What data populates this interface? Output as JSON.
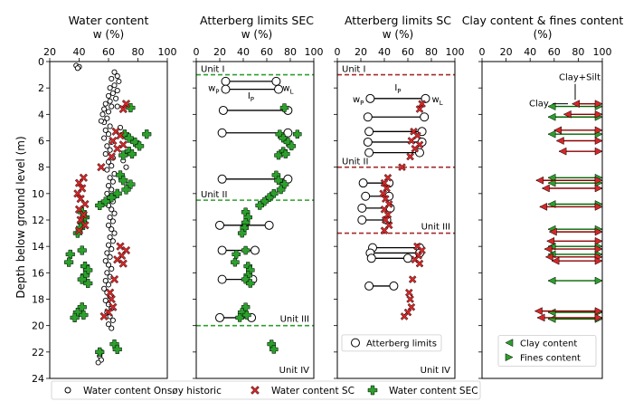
{
  "ylabel": "Depth below ground level (m)",
  "y_ticks": [
    0,
    2,
    4,
    6,
    8,
    10,
    12,
    14,
    16,
    18,
    20,
    22,
    24
  ],
  "ylim": [
    24,
    0
  ],
  "panels": [
    {
      "id": "water",
      "title": "Water content",
      "xlabel": "w (%)",
      "xlim": [
        20,
        100
      ],
      "x_ticks": [
        20,
        40,
        60,
        80,
        100
      ]
    },
    {
      "id": "sec",
      "title": "Atterberg limits SEC",
      "xlabel": "w (%)",
      "xlim": [
        0,
        100
      ],
      "x_ticks": [
        0,
        20,
        40,
        60,
        80,
        100
      ],
      "units": [
        {
          "label": "Unit I",
          "depth": 1.0
        },
        {
          "label": "Unit II",
          "depth": 10.5
        },
        {
          "label": "Unit III",
          "depth": 20.0
        }
      ],
      "bottom_label": "Unit IV",
      "legend_labels": {
        "wp": "w",
        "wp_sub": "P",
        "wl": "w",
        "wl_sub": "L",
        "ip": "I",
        "ip_sub": "P"
      }
    },
    {
      "id": "sc",
      "title": "Atterberg limits SC",
      "xlabel": "w (%)",
      "xlim": [
        0,
        100
      ],
      "x_ticks": [
        0,
        20,
        40,
        60,
        80,
        100
      ],
      "units": [
        {
          "label": "Unit I",
          "depth": 1.0
        },
        {
          "label": "Unit II",
          "depth": 8.0
        },
        {
          "label": "Unit III",
          "depth": 13.0
        }
      ],
      "bottom_label": "Unit IV",
      "legend_labels": {
        "wp": "w",
        "wp_sub": "P",
        "wl": "w",
        "wl_sub": "L",
        "ip": "I",
        "ip_sub": "P"
      },
      "legend": "Atterberg limits"
    },
    {
      "id": "clay",
      "title": "Clay content & fines content",
      "xlabel": "(%)",
      "xlim": [
        0,
        100
      ],
      "x_ticks": [
        0,
        20,
        40,
        60,
        80,
        100
      ],
      "annotations": [
        "Clay+Silt",
        "Clay"
      ],
      "legend": [
        "Clay content",
        "Fines content"
      ]
    }
  ],
  "bottom_legend": [
    "Water content Onsøy historic",
    "Water content SC",
    "Water content SEC"
  ],
  "colors": {
    "sc": "#d62728",
    "sec": "#2ca02c",
    "unit_sec": "#2ca02c",
    "unit_sc": "#a52a2a",
    "clay_arrow": "#8b0000",
    "fines_arrow": "#006400"
  },
  "chart_data": {
    "type": "scatter",
    "water_content": {
      "onsoy_historic": [
        [
          38,
          0.3
        ],
        [
          40,
          0.4
        ],
        [
          39,
          0.5
        ],
        [
          64,
          0.8
        ],
        [
          66,
          1.1
        ],
        [
          62,
          1.3
        ],
        [
          67,
          1.5
        ],
        [
          64,
          1.8
        ],
        [
          61,
          2.0
        ],
        [
          66,
          2.2
        ],
        [
          63,
          2.4
        ],
        [
          60,
          2.6
        ],
        [
          65,
          2.8
        ],
        [
          61,
          3.0
        ],
        [
          58,
          3.2
        ],
        [
          62,
          3.4
        ],
        [
          57,
          3.6
        ],
        [
          60,
          3.8
        ],
        [
          56,
          4.0
        ],
        [
          59,
          4.3
        ],
        [
          57,
          4.6
        ],
        [
          61,
          4.9
        ],
        [
          58,
          5.2
        ],
        [
          60,
          5.5
        ],
        [
          57,
          5.8
        ],
        [
          62,
          6.1
        ],
        [
          59,
          6.4
        ],
        [
          61,
          6.7
        ],
        [
          58,
          7.0
        ],
        [
          63,
          7.3
        ],
        [
          60,
          7.6
        ],
        [
          62,
          7.9
        ],
        [
          59,
          8.2
        ],
        [
          64,
          8.5
        ],
        [
          61,
          8.8
        ],
        [
          63,
          9.1
        ],
        [
          60,
          9.4
        ],
        [
          62,
          9.7
        ],
        [
          59,
          10.0
        ],
        [
          61,
          10.3
        ],
        [
          63,
          10.6
        ],
        [
          60,
          10.9
        ],
        [
          62,
          11.2
        ],
        [
          64,
          11.5
        ],
        [
          61,
          11.8
        ],
        [
          63,
          12.1
        ],
        [
          60,
          12.4
        ],
        [
          62,
          12.7
        ],
        [
          64,
          13.0
        ],
        [
          61,
          13.3
        ],
        [
          63,
          13.6
        ],
        [
          60,
          13.9
        ],
        [
          62,
          14.2
        ],
        [
          59,
          14.5
        ],
        [
          61,
          14.8
        ],
        [
          58,
          15.1
        ],
        [
          60,
          15.4
        ],
        [
          62,
          15.7
        ],
        [
          59,
          16.0
        ],
        [
          61,
          16.3
        ],
        [
          58,
          16.6
        ],
        [
          60,
          16.9
        ],
        [
          57,
          17.2
        ],
        [
          59,
          17.5
        ],
        [
          61,
          17.8
        ],
        [
          58,
          18.1
        ],
        [
          60,
          18.4
        ],
        [
          62,
          18.7
        ],
        [
          59,
          19.0
        ],
        [
          61,
          19.3
        ],
        [
          63,
          19.6
        ],
        [
          60,
          19.9
        ],
        [
          62,
          20.2
        ],
        [
          55,
          22.0
        ],
        [
          54,
          22.3
        ],
        [
          55,
          22.6
        ],
        [
          53,
          22.8
        ],
        [
          70,
          7.5
        ],
        [
          72,
          8.0
        ],
        [
          55,
          4.5
        ],
        [
          66,
          3.4
        ],
        [
          68,
          5.0
        ]
      ],
      "sc": [
        [
          72,
          3.2
        ],
        [
          70,
          3.6
        ],
        [
          65,
          5.3
        ],
        [
          68,
          5.6
        ],
        [
          63,
          6.0
        ],
        [
          70,
          6.3
        ],
        [
          66,
          6.6
        ],
        [
          62,
          7.2
        ],
        [
          55,
          8.0
        ],
        [
          43,
          8.8
        ],
        [
          40,
          9.2
        ],
        [
          42,
          9.6
        ],
        [
          39,
          10.0
        ],
        [
          41,
          10.4
        ],
        [
          44,
          10.8
        ],
        [
          40,
          11.2
        ],
        [
          43,
          11.6
        ],
        [
          41,
          12.0
        ],
        [
          44,
          12.4
        ],
        [
          40,
          12.8
        ],
        [
          68,
          14.0
        ],
        [
          72,
          14.3
        ],
        [
          69,
          14.7
        ],
        [
          66,
          15.0
        ],
        [
          70,
          15.3
        ],
        [
          64,
          16.5
        ],
        [
          61,
          17.5
        ],
        [
          62,
          18.0
        ],
        [
          63,
          18.6
        ],
        [
          60,
          19.0
        ],
        [
          57,
          19.3
        ]
      ],
      "sec": [
        [
          75,
          3.5
        ],
        [
          71,
          5.5
        ],
        [
          74,
          5.8
        ],
        [
          78,
          6.1
        ],
        [
          81,
          6.4
        ],
        [
          86,
          5.5
        ],
        [
          74,
          6.8
        ],
        [
          70,
          7.1
        ],
        [
          76,
          7.0
        ],
        [
          68,
          8.6
        ],
        [
          70,
          9.0
        ],
        [
          75,
          9.3
        ],
        [
          72,
          9.7
        ],
        [
          66,
          10.0
        ],
        [
          62,
          10.3
        ],
        [
          58,
          10.6
        ],
        [
          54,
          10.9
        ],
        [
          42,
          11.4
        ],
        [
          44,
          11.8
        ],
        [
          42,
          12.2
        ],
        [
          41,
          12.6
        ],
        [
          39,
          13.0
        ],
        [
          42,
          14.3
        ],
        [
          34,
          14.6
        ],
        [
          33,
          15.2
        ],
        [
          44,
          15.5
        ],
        [
          46,
          15.8
        ],
        [
          44,
          16.2
        ],
        [
          42,
          16.5
        ],
        [
          46,
          16.8
        ],
        [
          42,
          18.6
        ],
        [
          39,
          19.0
        ],
        [
          37,
          19.4
        ],
        [
          43,
          19.2
        ],
        [
          64,
          21.4
        ],
        [
          66,
          21.8
        ],
        [
          54,
          22.0
        ]
      ]
    },
    "atterberg_sec": [
      {
        "depth": 1.5,
        "wp": 25,
        "wl": 68
      },
      {
        "depth": 2.1,
        "wp": 25,
        "wl": 70
      },
      {
        "depth": 3.7,
        "wp": 23,
        "wl": 78
      },
      {
        "depth": 5.4,
        "wp": 22,
        "wl": 78
      },
      {
        "depth": 8.9,
        "wp": 22,
        "wl": 78
      },
      {
        "depth": 12.4,
        "wp": 20,
        "wl": 62
      },
      {
        "depth": 14.3,
        "wp": 22,
        "wl": 50
      },
      {
        "depth": 16.5,
        "wp": 22,
        "wl": 48
      },
      {
        "depth": 19.4,
        "wp": 20,
        "wl": 47
      }
    ],
    "atterberg_sc": [
      {
        "depth": 2.8,
        "wp": 28,
        "wl": 75
      },
      {
        "depth": 4.2,
        "wp": 26,
        "wl": 74
      },
      {
        "depth": 5.3,
        "wp": 27,
        "wl": 72
      },
      {
        "depth": 6.1,
        "wp": 26,
        "wl": 72
      },
      {
        "depth": 6.9,
        "wp": 27,
        "wl": 70
      },
      {
        "depth": 9.2,
        "wp": 22,
        "wl": 44
      },
      {
        "depth": 10.2,
        "wp": 24,
        "wl": 44
      },
      {
        "depth": 11.1,
        "wp": 21,
        "wl": 45
      },
      {
        "depth": 12.0,
        "wp": 21,
        "wl": 42
      },
      {
        "depth": 14.1,
        "wp": 30,
        "wl": 70
      },
      {
        "depth": 14.5,
        "wp": 28,
        "wl": 70
      },
      {
        "depth": 14.9,
        "wp": 29,
        "wl": 60
      },
      {
        "depth": 17.0,
        "wp": 27,
        "wl": 48
      }
    ],
    "clay_fines": {
      "clay_content": [
        {
          "depth": 3.2,
          "value": 75
        },
        {
          "depth": 4.0,
          "value": 68
        },
        {
          "depth": 5.2,
          "value": 60
        },
        {
          "depth": 6.0,
          "value": 62
        },
        {
          "depth": 6.8,
          "value": 64
        },
        {
          "depth": 9.0,
          "value": 45
        },
        {
          "depth": 9.6,
          "value": 50
        },
        {
          "depth": 11.0,
          "value": 48
        },
        {
          "depth": 12.9,
          "value": 56
        },
        {
          "depth": 13.6,
          "value": 54
        },
        {
          "depth": 14.2,
          "value": 52
        },
        {
          "depth": 14.8,
          "value": 53
        },
        {
          "depth": 15.1,
          "value": 58
        },
        {
          "depth": 18.9,
          "value": 44
        },
        {
          "depth": 19.4,
          "value": 46
        }
      ],
      "fines_content": [
        {
          "depth": 3.4,
          "value": 100
        },
        {
          "depth": 4.2,
          "value": 100
        },
        {
          "depth": 5.5,
          "value": 100
        },
        {
          "depth": 8.8,
          "value": 100
        },
        {
          "depth": 9.2,
          "value": 100
        },
        {
          "depth": 10.8,
          "value": 100
        },
        {
          "depth": 12.7,
          "value": 100
        },
        {
          "depth": 14.0,
          "value": 100
        },
        {
          "depth": 14.6,
          "value": 100
        },
        {
          "depth": 16.6,
          "value": 100
        },
        {
          "depth": 19.0,
          "value": 100
        },
        {
          "depth": 19.5,
          "value": 100
        }
      ]
    }
  }
}
